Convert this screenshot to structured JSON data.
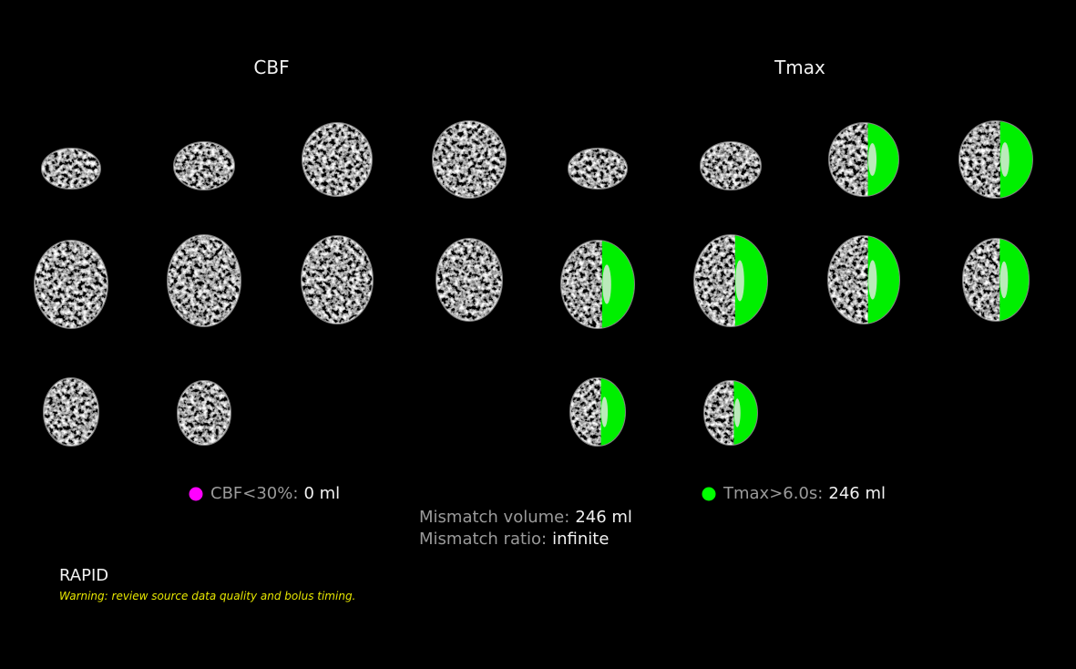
{
  "panels": [
    {
      "title": "CBF",
      "legend": {
        "label": "CBF<30%:",
        "value": "0 ml"
      }
    },
    {
      "title": "Tmax",
      "legend": {
        "label": "Tmax>6.0s:",
        "value": "246 ml"
      }
    }
  ],
  "mismatch": {
    "volume": {
      "label": "Mismatch volume:",
      "value": "246 ml"
    },
    "ratio": {
      "label": "Mismatch ratio:",
      "value": "infinite"
    }
  },
  "footer": {
    "brand": "RAPID",
    "warning": "Warning: review source data quality and bolus timing."
  }
}
